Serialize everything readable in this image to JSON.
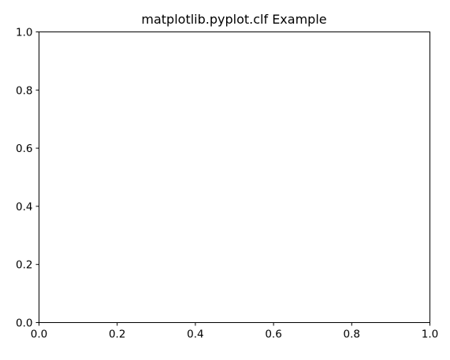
{
  "chart_data": {
    "type": "line",
    "title": "matplotlib.pyplot.clf Example",
    "xlabel": "",
    "ylabel": "",
    "xlim": [
      0.0,
      1.0
    ],
    "ylim": [
      0.0,
      1.0
    ],
    "x_ticks": [
      0.0,
      0.2,
      0.4,
      0.6,
      0.8,
      1.0
    ],
    "x_tick_labels": [
      "0.0",
      "0.2",
      "0.4",
      "0.6",
      "0.8",
      "1.0"
    ],
    "y_ticks": [
      0.0,
      0.2,
      0.4,
      0.6,
      0.8,
      1.0
    ],
    "y_tick_labels": [
      "0.0",
      "0.2",
      "0.4",
      "0.6",
      "0.8",
      "1.0"
    ],
    "series": [],
    "grid": false,
    "legend": "none",
    "frame_color": "#000000",
    "background_color": "#ffffff"
  }
}
